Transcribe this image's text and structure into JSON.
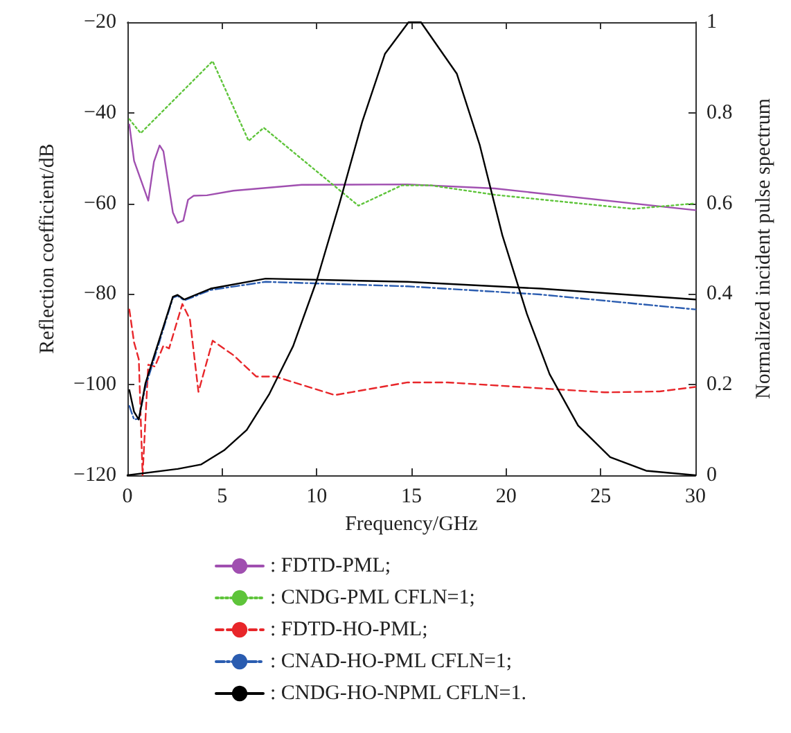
{
  "chart_data": {
    "type": "line",
    "xlabel": "Frequency/GHz",
    "ylabel": "Reflection coefficient/dB",
    "y2label": "Normalized incident pulse spectrum",
    "xlim": [
      0,
      30
    ],
    "xticks": [
      0,
      5,
      10,
      15,
      20,
      25,
      30
    ],
    "ylim": [
      -120,
      -20
    ],
    "yticks": [
      -120,
      -100,
      -80,
      -60,
      -40,
      -20
    ],
    "y2lim": [
      0,
      1
    ],
    "y2ticks": [
      0,
      0.2,
      0.4,
      0.6,
      0.8,
      1.0
    ],
    "grid": false,
    "legend": "bottom",
    "marker": "none",
    "series": [
      {
        "name": ": FDTD-PML;",
        "color": "#a04fb0",
        "line_style": "solid",
        "x": [
          0.1,
          0.35,
          1.1,
          1.4,
          1.7,
          1.9,
          2.4,
          2.65,
          2.95,
          3.2,
          3.5,
          4.2,
          5.6,
          9.2,
          14.8,
          19.4,
          30
        ],
        "values": [
          -42.6,
          -50.6,
          -59.4,
          -50.8,
          -47.2,
          -48.5,
          -62,
          -64.3,
          -63.8,
          -59.2,
          -58.3,
          -58.2,
          -57.2,
          -55.9,
          -55.8,
          -56.7,
          -61.5
        ]
      },
      {
        "name": ": CNDG-PML CFLN=1;",
        "color": "#5ec43a",
        "line_style": "dotted",
        "x": [
          0.1,
          0.7,
          4.5,
          6.4,
          7.2,
          12.2,
          14.5,
          16,
          19.4,
          26.7,
          30
        ],
        "values": [
          -41.4,
          -44.5,
          -28.6,
          -46.2,
          -43.3,
          -60.5,
          -56,
          -56,
          -58.1,
          -61.2,
          -60
        ]
      },
      {
        "name": ": FDTD-HO-PML;",
        "color": "#e8262a",
        "line_style": "dashed",
        "x": [
          0.1,
          0.35,
          0.6,
          0.8,
          1.1,
          1.45,
          1.9,
          2.2,
          2.9,
          3.3,
          3.75,
          4.5,
          5.6,
          6.8,
          7.8,
          10.95,
          14.8,
          16.9,
          25.2,
          28.1,
          30
        ],
        "values": [
          -83.4,
          -90.7,
          -94.4,
          -120,
          -95.6,
          -96,
          -91.4,
          -92,
          -82.2,
          -85.6,
          -101.6,
          -90.3,
          -93.5,
          -98.2,
          -98.2,
          -102.3,
          -99.5,
          -99.5,
          -101.7,
          -101.5,
          -100.5
        ]
      },
      {
        "name": ": CNAD-HO-PML CFLN=1;",
        "color": "#2a5cb0",
        "line_style": "dashdot",
        "x": [
          0.1,
          0.35,
          0.6,
          0.95,
          1.8,
          2.4,
          2.65,
          3.0,
          4.4,
          7.3,
          14.8,
          21.8,
          30
        ],
        "values": [
          -104.7,
          -107.7,
          -107.5,
          -100.5,
          -89,
          -80.8,
          -80.4,
          -81.4,
          -79.1,
          -77.3,
          -78.3,
          -80.1,
          -83.4
        ]
      },
      {
        "name": ": CNDG-HO-NPML CFLN=1.",
        "color": "#000000",
        "line_style": "solid",
        "x": [
          0.1,
          0.35,
          0.6,
          0.95,
          1.8,
          2.4,
          2.65,
          3.0,
          4.4,
          7.3,
          14.8,
          21.8,
          30
        ],
        "values": [
          -101.2,
          -106,
          -107.7,
          -99.7,
          -88.5,
          -80.6,
          -80.2,
          -81.2,
          -78.8,
          -76.6,
          -77.3,
          -78.8,
          -81.2
        ]
      },
      {
        "color": "#000000",
        "line_style": "solid",
        "axis": "y2",
        "x": [
          0,
          2.65,
          3.9,
          5.1,
          6.3,
          7.5,
          8.75,
          10,
          11.2,
          12.4,
          13.6,
          14.85,
          15.5,
          17.4,
          18.6,
          19.8,
          21.1,
          22.3,
          23.8,
          25.5,
          27.4,
          30
        ],
        "values": [
          0,
          0.014,
          0.024,
          0.055,
          0.1,
          0.18,
          0.285,
          0.43,
          0.6,
          0.78,
          0.93,
          1.0,
          1.0,
          0.886,
          0.73,
          0.53,
          0.356,
          0.223,
          0.11,
          0.04,
          0.01,
          0
        ]
      }
    ]
  }
}
